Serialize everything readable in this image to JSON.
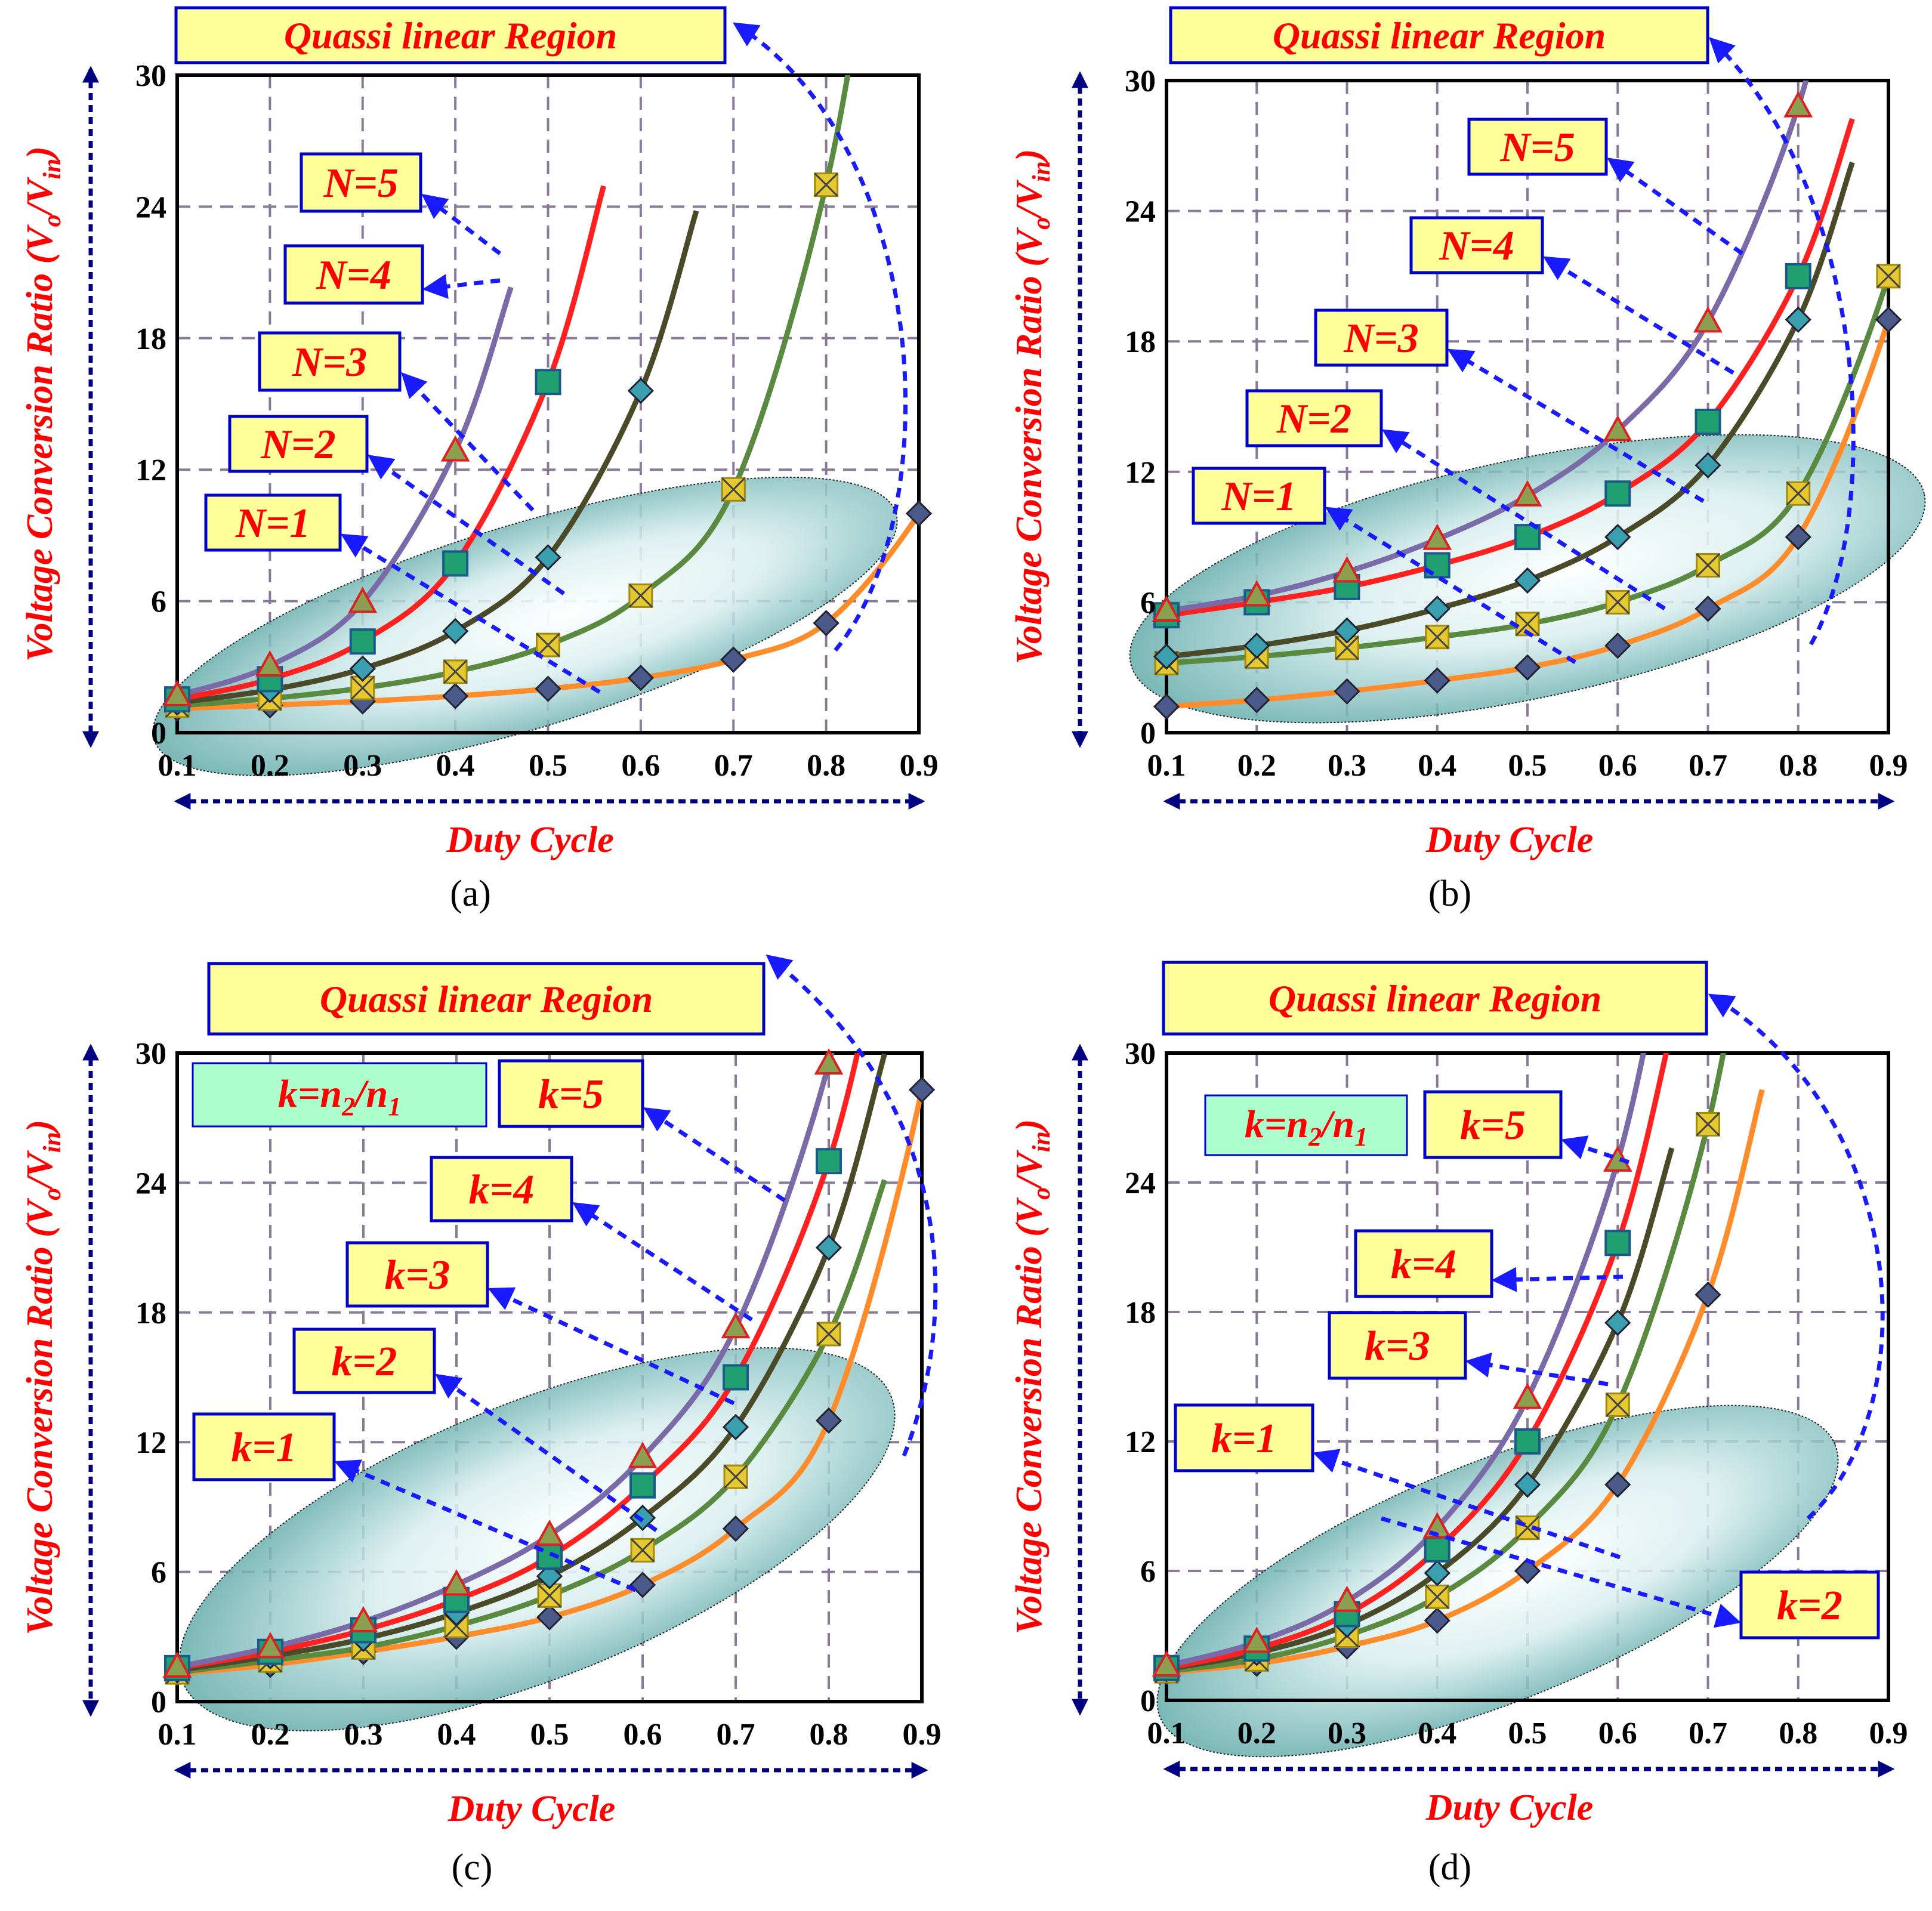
{
  "figure": {
    "axis_x_label": "Duty Cycle",
    "axis_y_label_main": "Voltage Conversion Ratio (V",
    "axis_y_sub_o": "o",
    "axis_y_slash": "/V",
    "axis_y_sub_in": "in",
    "axis_y_close": ")",
    "region_label": "Quassi linear Region",
    "k_definition": {
      "main": "k=n",
      "sub2": "2",
      "slash": "/n",
      "sub1": "1"
    },
    "colors": {
      "axis_label": "#ff0000",
      "callout_text": "#ff0000",
      "callout_fill": "#ffff99",
      "callout_border": "#0000cc",
      "k_def_fill": "#aaffcc",
      "grid": "#8a7a9a",
      "arrow": "#1a1aff",
      "axis_arrow": "#000080",
      "ellipse": "#5fb3b3"
    }
  },
  "chart_data": [
    {
      "panel": "(a)",
      "type": "line",
      "xlabel": "Duty Cycle",
      "ylabel": "Voltage Conversion Ratio (Vo/Vin)",
      "xlim": [
        0.1,
        0.9
      ],
      "ylim": [
        0,
        30
      ],
      "xticks": [
        "0.1",
        "0.2",
        "0.3",
        "0.4",
        "0.5",
        "0.6",
        "0.7",
        "0.8",
        "0.9"
      ],
      "yticks": [
        "0",
        "6",
        "12",
        "18",
        "24",
        "30"
      ],
      "series": [
        {
          "name": "N=1",
          "color": "#ff8c2a",
          "marker": "diamond",
          "x": [
            0.1,
            0.2,
            0.3,
            0.4,
            0.5,
            0.6,
            0.7,
            0.8,
            0.9
          ],
          "y": [
            1.1,
            1.25,
            1.43,
            1.67,
            2.0,
            2.5,
            3.33,
            5.0,
            10.0
          ]
        },
        {
          "name": "N=2",
          "color": "#5a8a40",
          "marker": "x-square",
          "x": [
            0.1,
            0.2,
            0.3,
            0.4,
            0.5,
            0.6,
            0.7,
            0.8
          ],
          "y": [
            1.23,
            1.56,
            2.04,
            2.78,
            4.0,
            6.25,
            11.1,
            25.0
          ]
        },
        {
          "name": "N=3",
          "color": "#4a4a28",
          "marker": "diamond",
          "x": [
            0.1,
            0.2,
            0.3,
            0.4,
            0.5,
            0.6
          ],
          "y": [
            1.37,
            1.95,
            2.92,
            4.63,
            8.0,
            15.6
          ]
        },
        {
          "name": "N=4",
          "color": "#ff2020",
          "marker": "square",
          "x": [
            0.1,
            0.2,
            0.3,
            0.4,
            0.5
          ],
          "y": [
            1.52,
            2.44,
            4.16,
            7.72,
            16.0
          ]
        },
        {
          "name": "N=5",
          "color": "#7a6aa8",
          "marker": "triangle",
          "x": [
            0.1,
            0.2,
            0.3,
            0.4
          ],
          "y": [
            1.69,
            3.05,
            5.95,
            12.86
          ]
        }
      ],
      "callouts": [
        "N=5",
        "N=4",
        "N=3",
        "N=2",
        "N=1"
      ],
      "region_label": "Quassi linear Region"
    },
    {
      "panel": "(b)",
      "type": "line",
      "xlabel": "Duty Cycle",
      "ylabel": "Voltage Conversion Ratio (Vo/Vin)",
      "xlim": [
        0.1,
        0.9
      ],
      "ylim": [
        0,
        30
      ],
      "xticks": [
        "0.1",
        "0.2",
        "0.3",
        "0.4",
        "0.5",
        "0.6",
        "0.7",
        "0.8",
        "0.9"
      ],
      "yticks": [
        "0",
        "6",
        "12",
        "18",
        "24",
        "30"
      ],
      "series": [
        {
          "name": "N=1",
          "color": "#ff8c2a",
          "marker": "diamond",
          "x": [
            0.1,
            0.2,
            0.3,
            0.4,
            0.5,
            0.6,
            0.7,
            0.8,
            0.9
          ],
          "y": [
            1.2,
            1.5,
            1.9,
            2.4,
            3.0,
            4.0,
            5.7,
            9.0,
            19.0
          ]
        },
        {
          "name": "N=2",
          "color": "#5a8a40",
          "marker": "x-square",
          "x": [
            0.1,
            0.2,
            0.3,
            0.4,
            0.5,
            0.6,
            0.7,
            0.8,
            0.9
          ],
          "y": [
            3.2,
            3.5,
            3.9,
            4.4,
            5.0,
            6.0,
            7.7,
            11.0,
            21.0
          ]
        },
        {
          "name": "N=3",
          "color": "#4a4a28",
          "marker": "diamond",
          "x": [
            0.1,
            0.2,
            0.3,
            0.4,
            0.5,
            0.6,
            0.7,
            0.8
          ],
          "y": [
            3.5,
            4.0,
            4.7,
            5.7,
            7.0,
            9.0,
            12.3,
            19.0
          ]
        },
        {
          "name": "N=4",
          "color": "#ff2020",
          "marker": "square",
          "x": [
            0.1,
            0.2,
            0.3,
            0.4,
            0.5,
            0.6,
            0.7,
            0.8
          ],
          "y": [
            5.4,
            6.0,
            6.7,
            7.7,
            9.0,
            11.0,
            14.3,
            21.0
          ]
        },
        {
          "name": "N=5",
          "color": "#7a6aa8",
          "marker": "triangle",
          "x": [
            0.1,
            0.2,
            0.3,
            0.4,
            0.5,
            0.6,
            0.7,
            0.8
          ],
          "y": [
            5.6,
            6.3,
            7.4,
            8.9,
            10.9,
            13.9,
            18.9,
            28.8
          ]
        }
      ],
      "callouts": [
        "N=5",
        "N=4",
        "N=3",
        "N=2",
        "N=1"
      ],
      "region_label": "Quassi linear Region"
    },
    {
      "panel": "(c)",
      "type": "line",
      "xlabel": "Duty Cycle",
      "ylabel": "Voltage Conversion Ratio (Vo/Vin)",
      "xlim": [
        0.1,
        0.9
      ],
      "ylim": [
        0,
        30
      ],
      "xticks": [
        "0.1",
        "0.2",
        "0.3",
        "0.4",
        "0.5",
        "0.6",
        "0.7",
        "0.8",
        "0.9"
      ],
      "yticks": [
        "0",
        "6",
        "12",
        "18",
        "24",
        "30"
      ],
      "series": [
        {
          "name": "k=1",
          "color": "#ff8c2a",
          "marker": "diamond",
          "x": [
            0.1,
            0.2,
            0.3,
            0.4,
            0.5,
            0.6,
            0.7,
            0.8,
            0.9
          ],
          "y": [
            1.3,
            1.7,
            2.3,
            3.0,
            3.9,
            5.4,
            8.0,
            13.0,
            28.3
          ]
        },
        {
          "name": "k=2",
          "color": "#5a8a40",
          "marker": "x-square",
          "x": [
            0.1,
            0.2,
            0.3,
            0.4,
            0.5,
            0.6,
            0.7,
            0.8
          ],
          "y": [
            1.35,
            1.9,
            2.5,
            3.5,
            4.9,
            7.0,
            10.4,
            17.0
          ]
        },
        {
          "name": "k=3",
          "color": "#4a4a28",
          "marker": "diamond",
          "x": [
            0.1,
            0.2,
            0.3,
            0.4,
            0.5,
            0.6,
            0.7,
            0.8
          ],
          "y": [
            1.45,
            2.1,
            2.9,
            4.1,
            5.8,
            8.5,
            12.7,
            21.0
          ]
        },
        {
          "name": "k=4",
          "color": "#ff2020",
          "marker": "square",
          "x": [
            0.1,
            0.2,
            0.3,
            0.4,
            0.5,
            0.6,
            0.7,
            0.8
          ],
          "y": [
            1.55,
            2.3,
            3.3,
            4.7,
            6.7,
            10.0,
            15.0,
            25.0
          ]
        },
        {
          "name": "k=5",
          "color": "#7a6aa8",
          "marker": "triangle",
          "x": [
            0.1,
            0.2,
            0.3,
            0.4,
            0.5,
            0.6,
            0.7,
            0.8
          ],
          "y": [
            1.6,
            2.5,
            3.7,
            5.4,
            7.7,
            11.3,
            17.3,
            29.5
          ]
        }
      ],
      "callouts": [
        "k=5",
        "k=4",
        "k=3",
        "k=2",
        "k=1"
      ],
      "region_label": "Quassi linear Region"
    },
    {
      "panel": "(d)",
      "type": "line",
      "xlabel": "Duty Cycle",
      "ylabel": "Voltage Conversion Ratio (Vo/Vin)",
      "xlim": [
        0.1,
        0.9
      ],
      "ylim": [
        0,
        30
      ],
      "xticks": [
        "0.1",
        "0.2",
        "0.3",
        "0.4",
        "0.5",
        "0.6",
        "0.7",
        "0.8",
        "0.9"
      ],
      "yticks": [
        "0",
        "6",
        "12",
        "18",
        "24",
        "30"
      ],
      "series": [
        {
          "name": "k=1",
          "color": "#ff8c2a",
          "marker": "diamond",
          "x": [
            0.1,
            0.2,
            0.3,
            0.4,
            0.5,
            0.6,
            0.7
          ],
          "y": [
            1.3,
            1.7,
            2.5,
            3.7,
            6.0,
            10.0,
            18.8
          ]
        },
        {
          "name": "k=2",
          "color": "#5a8a40",
          "marker": "x-square",
          "x": [
            0.1,
            0.2,
            0.3,
            0.4,
            0.5,
            0.6,
            0.7
          ],
          "y": [
            1.35,
            1.9,
            3.0,
            4.8,
            8.0,
            13.7,
            26.7
          ]
        },
        {
          "name": "k=3",
          "color": "#4a4a28",
          "marker": "diamond",
          "x": [
            0.1,
            0.2,
            0.3,
            0.4,
            0.5,
            0.6
          ],
          "y": [
            1.45,
            2.2,
            3.5,
            5.9,
            10.0,
            17.5
          ]
        },
        {
          "name": "k=4",
          "color": "#ff2020",
          "marker": "square",
          "x": [
            0.1,
            0.2,
            0.3,
            0.4,
            0.5,
            0.6
          ],
          "y": [
            1.5,
            2.4,
            4.0,
            7.0,
            12.0,
            21.2
          ]
        },
        {
          "name": "k=5",
          "color": "#7a6aa8",
          "marker": "triangle",
          "x": [
            0.1,
            0.2,
            0.3,
            0.4,
            0.5,
            0.6
          ],
          "y": [
            1.6,
            2.7,
            4.6,
            8.0,
            14.0,
            25.0
          ]
        }
      ],
      "callouts": [
        "k=5",
        "k=4",
        "k=3",
        "k=2",
        "k=1"
      ],
      "region_label": "Quassi linear Region"
    }
  ]
}
